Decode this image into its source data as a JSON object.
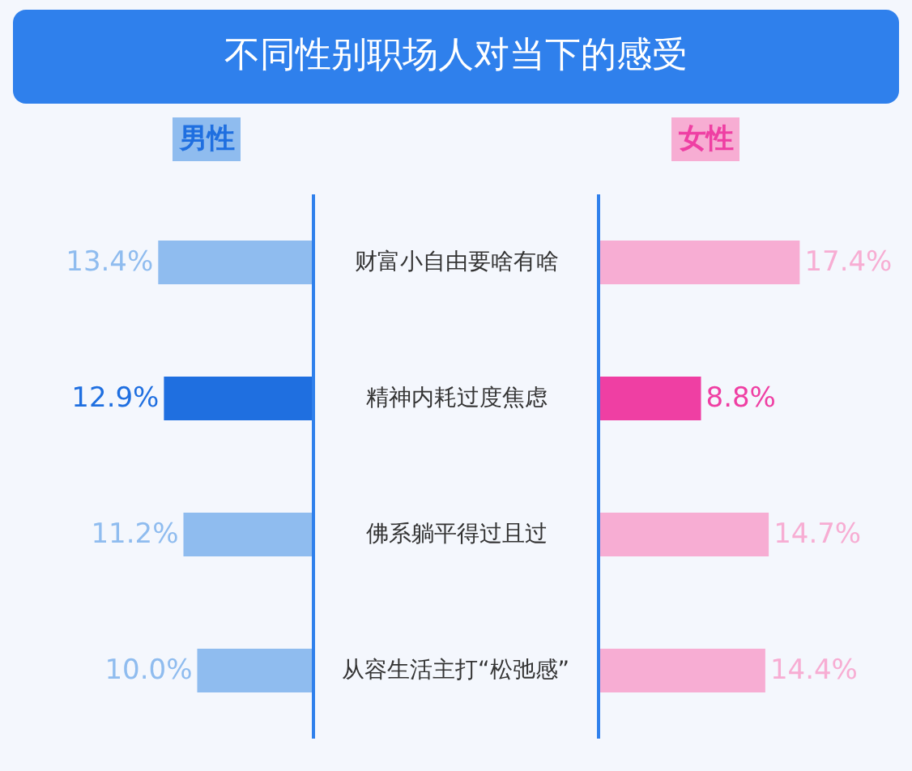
{
  "chart_data": [
    {
      "type": "bar",
      "orientation": "horizontal",
      "title": "不同性别职场人对当下的感受",
      "categories": [
        "财富小自由要啥有啥",
        "精神内耗过度焦虑",
        "佛系躺平得过且过",
        "从容生活主打“松弛感”"
      ],
      "series": [
        {
          "name": "男性",
          "color": "#8fbcef",
          "colors": [
            "#8fbcef",
            "#1f6fe0",
            "#8fbcef",
            "#8fbcef"
          ],
          "values": [
            13.4,
            12.9,
            11.2,
            10.0
          ],
          "value_labels": [
            "13.4%",
            "12.9%",
            "11.2%",
            "10.0%"
          ]
        }
      ],
      "tick_labels": "y"
    },
    {
      "type": "bar",
      "orientation": "horizontal",
      "categories": [
        null,
        null,
        null,
        null
      ],
      "series": [
        {
          "name": "女性",
          "color": "#f7add3",
          "colors": [
            "#f7add3",
            "#ef3fa3",
            "#f7add3",
            "#f7add3"
          ],
          "values": [
            17.4,
            8.8,
            14.7,
            14.4
          ],
          "value_labels": [
            "17.4%",
            "8.8%",
            "14.7%",
            "14.4%"
          ]
        }
      ],
      "tick_labels": false
    }
  ]
}
